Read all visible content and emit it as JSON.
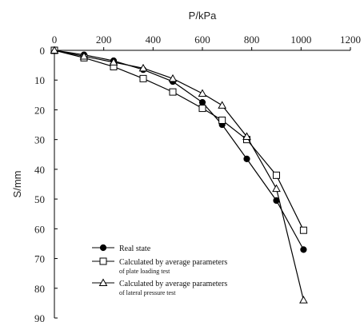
{
  "chart_data": {
    "type": "line",
    "xlabel": "P/kPa",
    "ylabel": "S/mm",
    "xlim": [
      0,
      1200
    ],
    "ylim": [
      0,
      90
    ],
    "x_axis_position": "top",
    "y_inverted": true,
    "x_ticks": [
      0,
      200,
      400,
      600,
      800,
      1000,
      1200
    ],
    "y_ticks": [
      0,
      10,
      20,
      30,
      40,
      50,
      60,
      70,
      80,
      90
    ],
    "grid": false,
    "legend_position": "bottom-left",
    "series": [
      {
        "name": "Real state",
        "marker": "filled-circle",
        "x": [
          0,
          120,
          240,
          360,
          480,
          600,
          680,
          780,
          900,
          1010
        ],
        "y": [
          0,
          1.5,
          3.5,
          6.5,
          10.5,
          17.5,
          25,
          36.5,
          50.5,
          67
        ]
      },
      {
        "name": "Calculated by average parameters",
        "name_line2": "of plate loading test",
        "marker": "open-square",
        "x": [
          0,
          120,
          240,
          360,
          480,
          600,
          680,
          780,
          900,
          1010
        ],
        "y": [
          0,
          2.5,
          5.5,
          9.5,
          14,
          19.5,
          23.5,
          30,
          42,
          60.5
        ]
      },
      {
        "name": "Calculated by average parameters",
        "name_line2": "of lateral pressure test",
        "marker": "open-triangle",
        "x": [
          0,
          120,
          240,
          360,
          480,
          600,
          680,
          780,
          900,
          1010
        ],
        "y": [
          0,
          2,
          4,
          6,
          9.5,
          14.5,
          18.5,
          29,
          46.5,
          84
        ]
      }
    ]
  }
}
